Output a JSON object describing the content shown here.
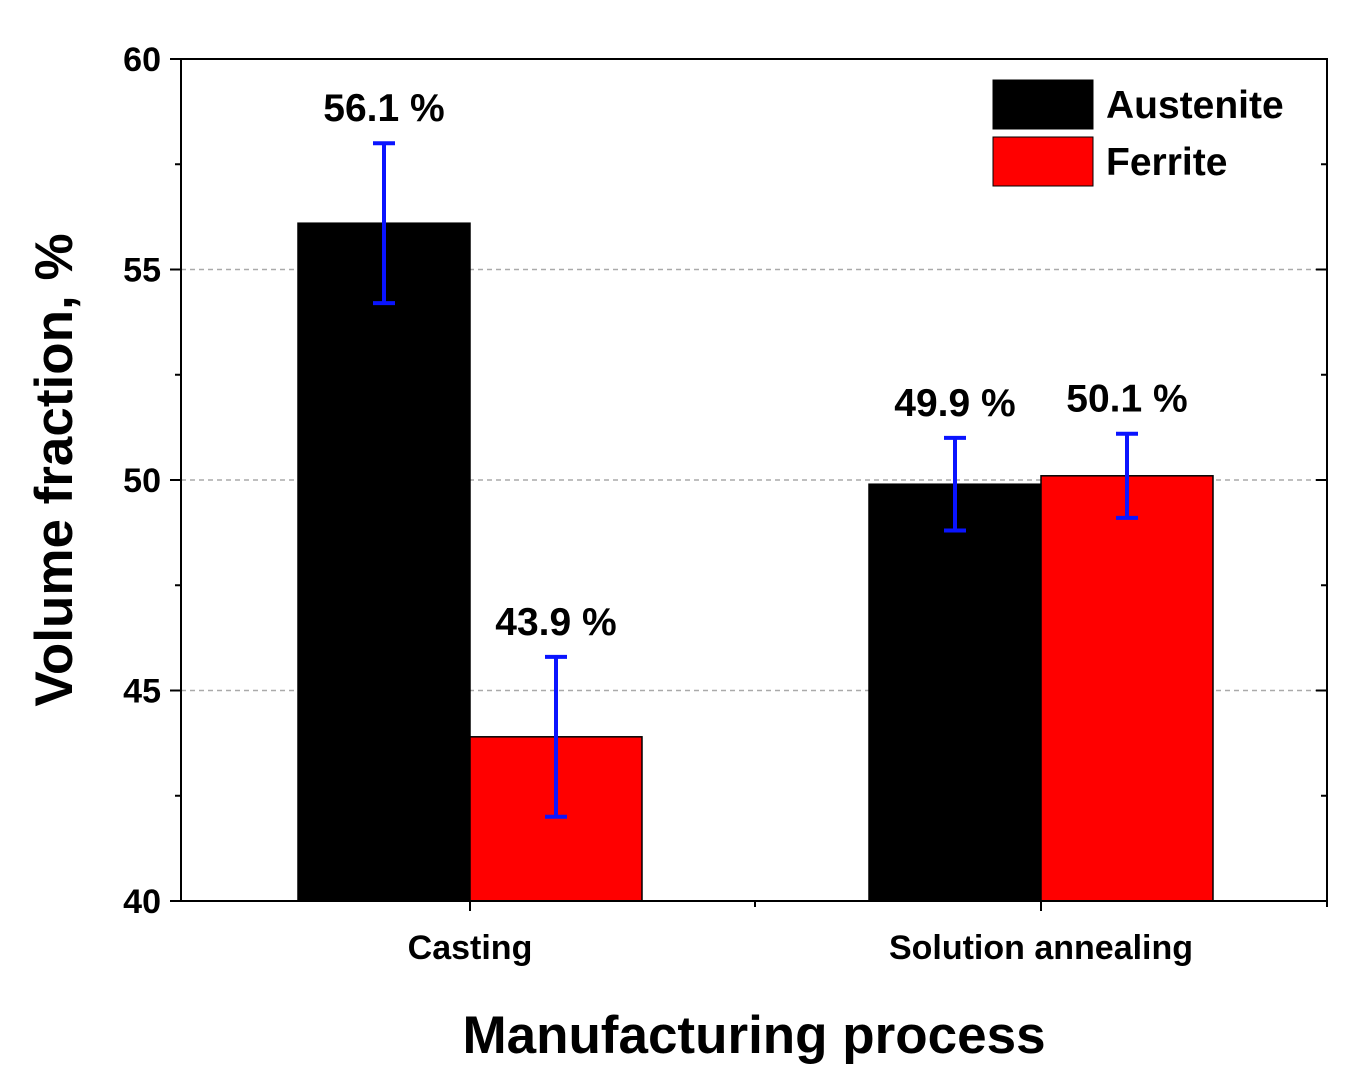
{
  "chart_data": {
    "type": "bar",
    "xlabel": "Manufacturing process",
    "ylabel": "Volume fraction, %",
    "ylim": [
      40,
      60
    ],
    "yticks": [
      "40",
      "45",
      "50",
      "55",
      "60"
    ],
    "grid": "horizontal dashed",
    "legend_position": "top-right",
    "categories": [
      "Casting",
      "Solution annealing"
    ],
    "series": [
      {
        "name": "Austenite",
        "color": "#000000",
        "values": [
          56.1,
          49.9
        ],
        "errors": [
          [
            54.2,
            58.0
          ],
          [
            48.8,
            51.0
          ]
        ],
        "labels": [
          "56.1 %",
          "49.9 %"
        ]
      },
      {
        "name": "Ferrite",
        "color": "#ff0000",
        "values": [
          43.9,
          50.1
        ],
        "errors": [
          [
            42.0,
            45.8
          ],
          [
            49.1,
            51.1
          ]
        ],
        "labels": [
          "43.9 %",
          "50.1 %"
        ]
      }
    ],
    "error_bar_color": "#0a14ff"
  }
}
